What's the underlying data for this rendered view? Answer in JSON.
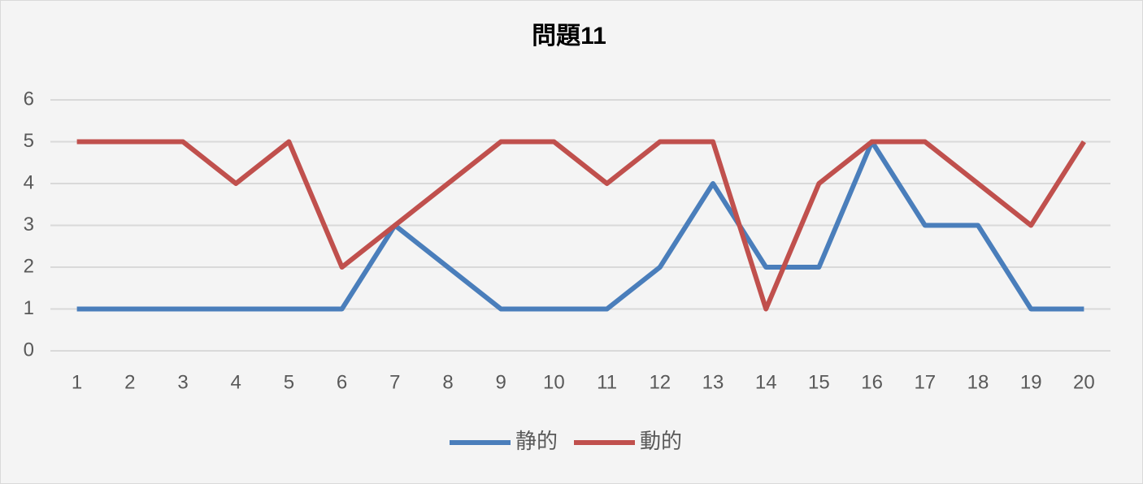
{
  "chart_data": {
    "type": "line",
    "title": "問題11",
    "categories": [
      "1",
      "2",
      "3",
      "4",
      "5",
      "6",
      "7",
      "8",
      "9",
      "10",
      "11",
      "12",
      "13",
      "14",
      "15",
      "16",
      "17",
      "18",
      "19",
      "20"
    ],
    "series": [
      {
        "name": "静的",
        "color": "#4a7ebb",
        "values": [
          1,
          1,
          1,
          1,
          1,
          1,
          3,
          2,
          1,
          1,
          1,
          2,
          4,
          2,
          2,
          5,
          3,
          3,
          1,
          1
        ]
      },
      {
        "name": "動的",
        "color": "#c0504d",
        "values": [
          5,
          5,
          5,
          4,
          5,
          2,
          3,
          4,
          5,
          5,
          4,
          5,
          5,
          1,
          4,
          5,
          5,
          4,
          3,
          5
        ]
      }
    ],
    "ylim": [
      0,
      6
    ],
    "yticks": [
      0,
      1,
      2,
      3,
      4,
      5,
      6
    ],
    "grid": true
  }
}
